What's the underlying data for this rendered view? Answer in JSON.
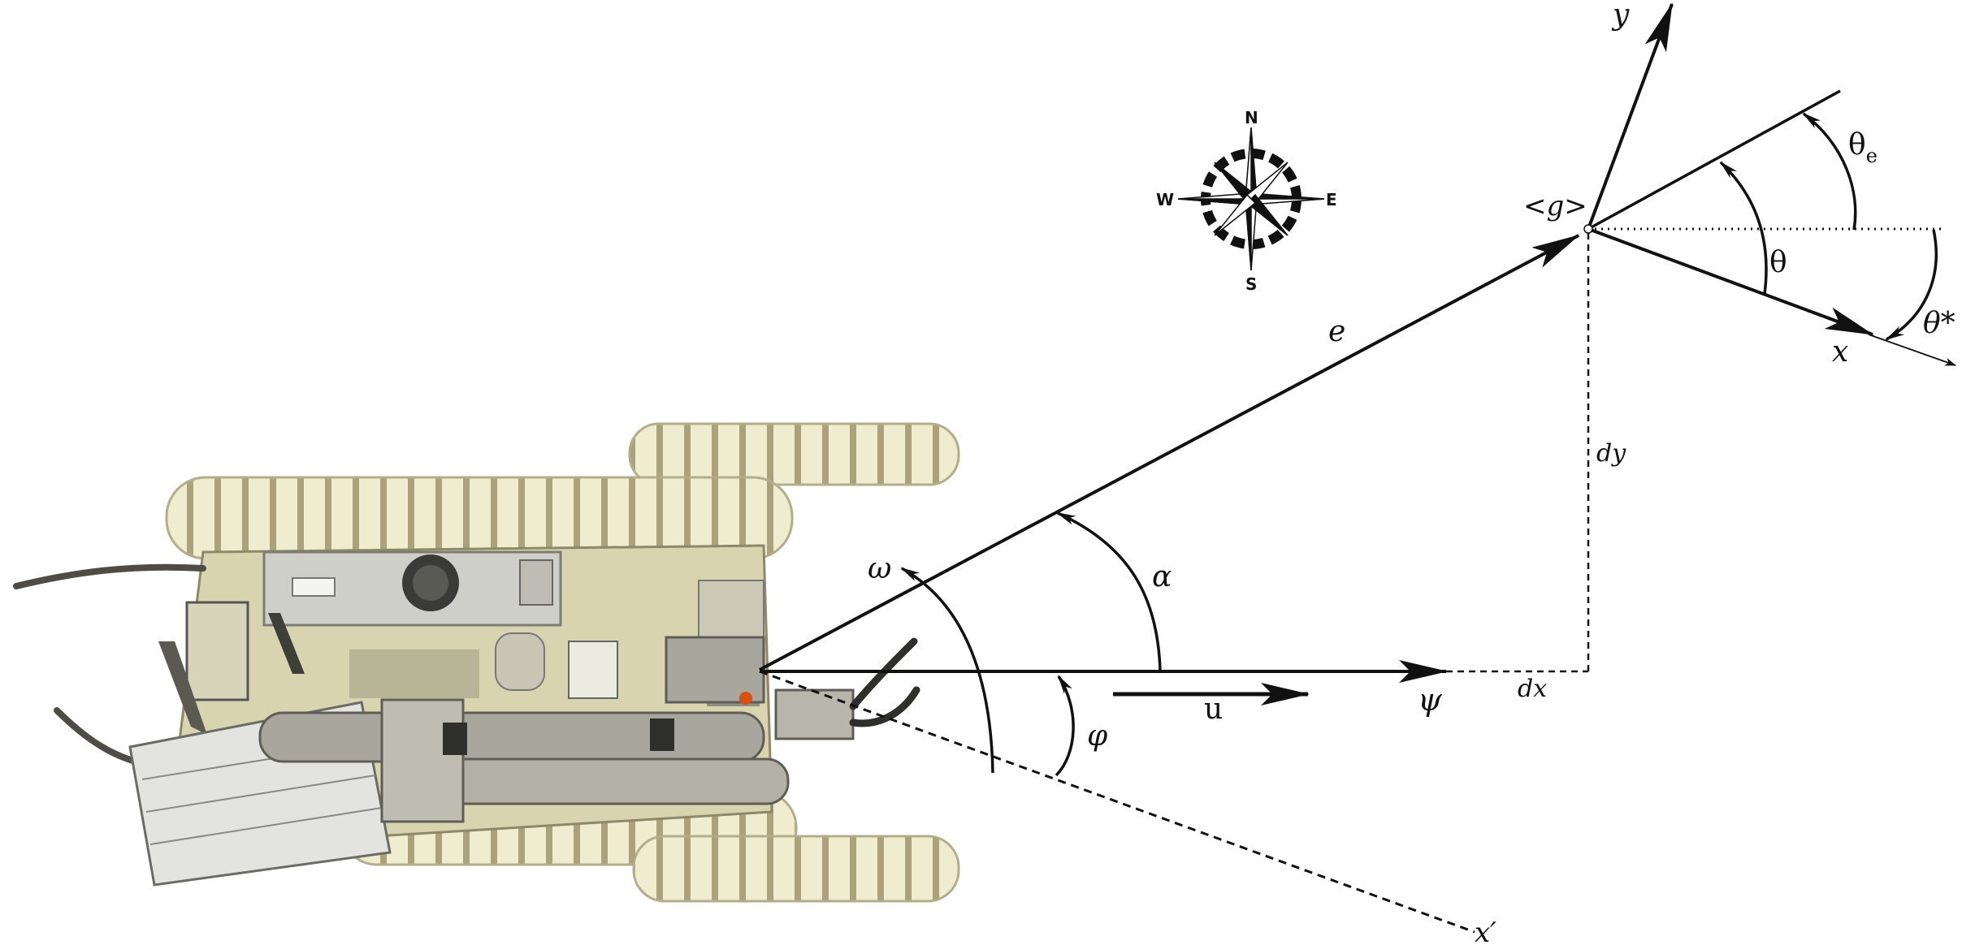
{
  "diagram": {
    "labels": {
      "goal": "<g>",
      "y_axis": "y",
      "x_axis": "x",
      "theta_e_main": "θ",
      "theta_e_sub": "e",
      "theta": "θ",
      "theta_star": "θ*",
      "e": "e",
      "dy": "dy",
      "dx": "dx",
      "omega": "ω",
      "alpha": "α",
      "phi": "φ",
      "u": "u",
      "psi": "ψ",
      "x_prime": "x′"
    },
    "compass": {
      "north": "N",
      "south": "S",
      "east": "E",
      "west": "W"
    },
    "colors": {
      "ink": "#111111",
      "track": "#e4e0bd",
      "track_shadow": "#b9b38c",
      "body": "#d8d3b2",
      "metal": "#c9c7c0",
      "arm": "#a7a59b"
    }
  }
}
